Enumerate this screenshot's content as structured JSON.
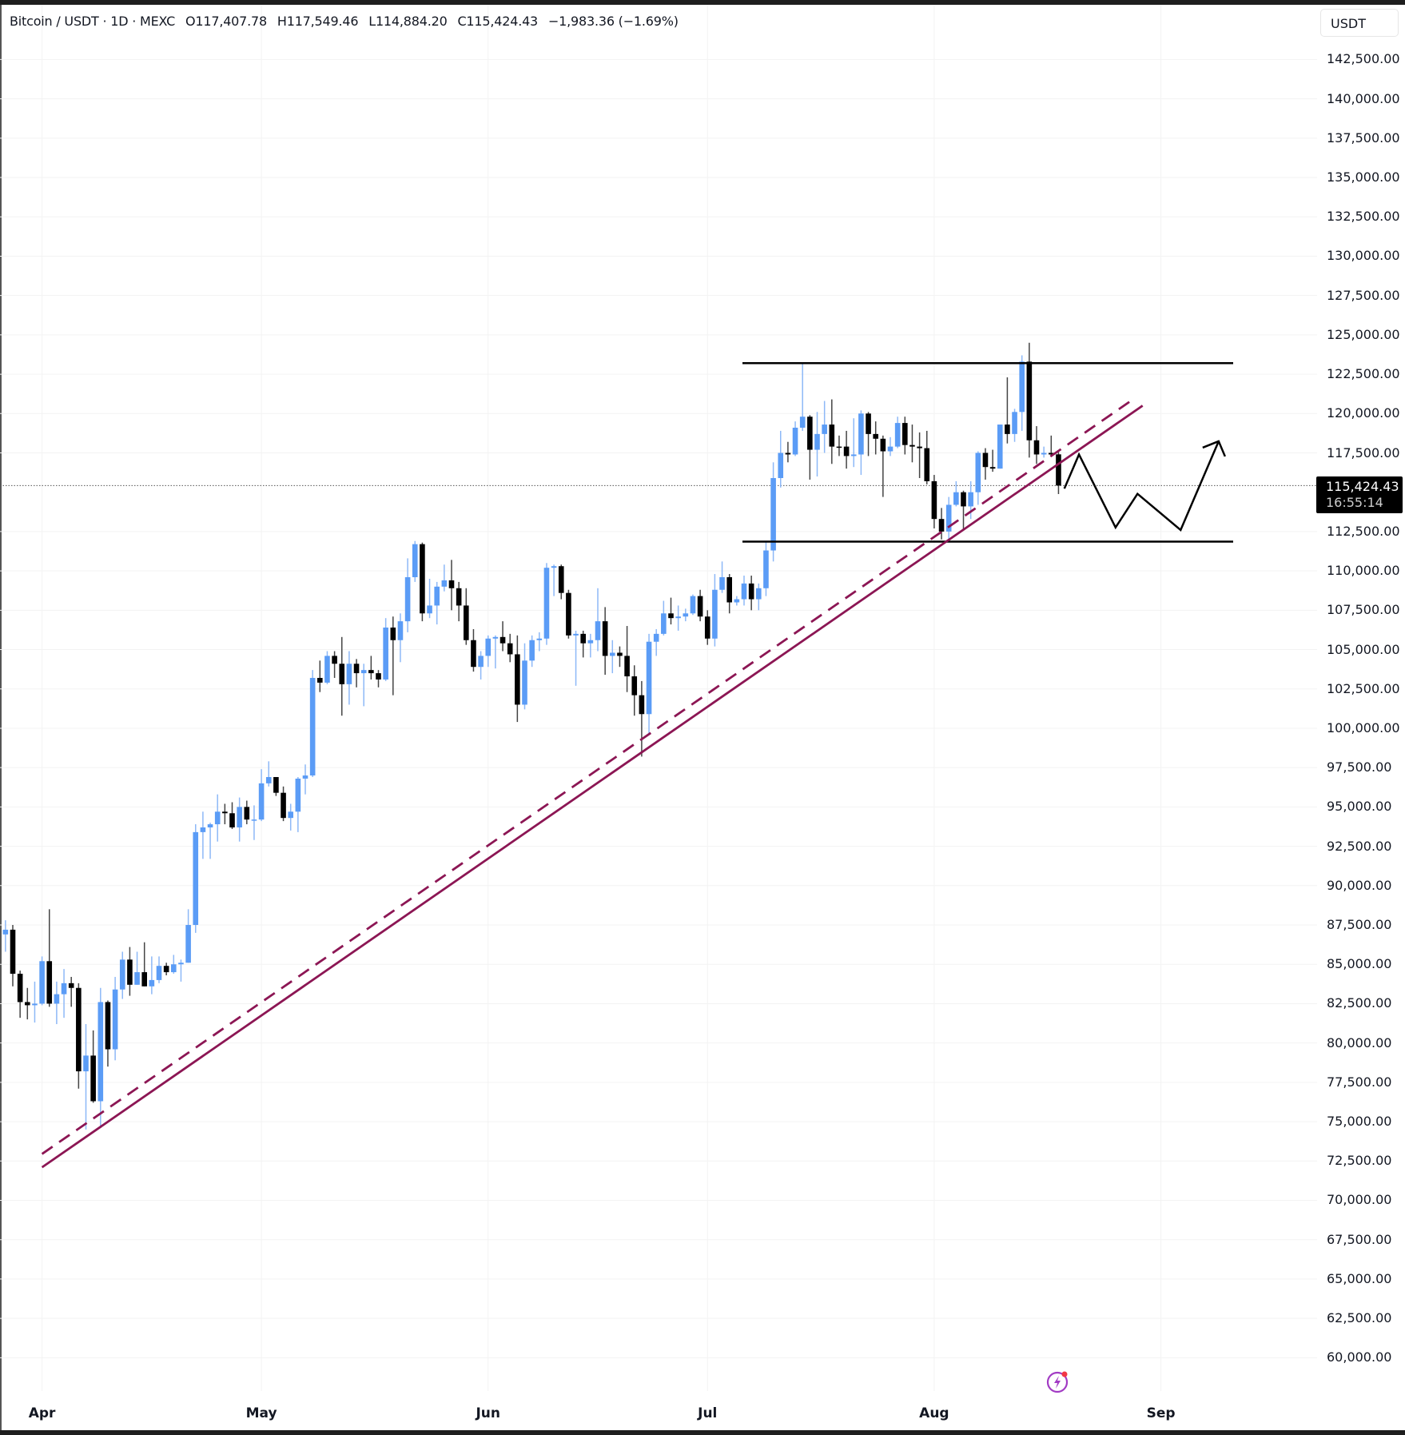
{
  "header": {
    "symbol": "Bitcoin / USDT · 1D · MEXC",
    "open": "O117,407.78",
    "high": "H117,549.46",
    "low": "L114,884.20",
    "close": "C115,424.43",
    "change": "−1,983.36 (−1.69%)"
  },
  "currency_button": "USDT",
  "last_price": {
    "value": "115,424.43",
    "countdown": "16:55:14"
  },
  "icons": {
    "alert": "lightning-alert-icon"
  },
  "colors": {
    "up": "#5b9cf6",
    "down": "#000000",
    "trendline": "#8c1654",
    "level": "#000000",
    "grid": "#f3f3f3"
  },
  "chart_data": {
    "type": "candlestick",
    "title": "Bitcoin / USDT · 1D · MEXC",
    "xlabel": "",
    "ylabel": "USDT",
    "ylim": [
      58500,
      144500
    ],
    "grid": true,
    "y_ticks": [
      "142,500.00",
      "140,000.00",
      "137,500.00",
      "135,000.00",
      "132,500.00",
      "130,000.00",
      "127,500.00",
      "125,000.00",
      "122,500.00",
      "120,000.00",
      "117,500.00",
      "112,500.00",
      "110,000.00",
      "107,500.00",
      "105,000.00",
      "102,500.00",
      "100,000.00",
      "97,500.00",
      "95,000.00",
      "92,500.00",
      "90,000.00",
      "87,500.00",
      "85,000.00",
      "82,500.00",
      "80,000.00",
      "77,500.00",
      "75,000.00",
      "72,500.00",
      "70,000.00",
      "67,500.00",
      "65,000.00",
      "62,500.00",
      "60,000.00"
    ],
    "x_ticks": [
      {
        "label": "Apr",
        "day": 0
      },
      {
        "label": "May",
        "day": 30
      },
      {
        "label": "Jun",
        "day": 61
      },
      {
        "label": "Jul",
        "day": 91
      },
      {
        "label": "Aug",
        "day": 122
      },
      {
        "label": "Sep",
        "day": 153
      }
    ],
    "first_candle_day": -5,
    "first_candle_date": "Mar 27",
    "ohlc_thousands": [
      [
        86.9,
        87.8,
        85.8,
        87.2
      ],
      [
        87.2,
        87.5,
        83.6,
        84.4
      ],
      [
        84.4,
        84.6,
        81.6,
        82.6
      ],
      [
        82.6,
        83.5,
        81.5,
        82.4
      ],
      [
        82.4,
        83.9,
        81.3,
        82.5
      ],
      [
        82.5,
        85.5,
        82.4,
        85.2
      ],
      [
        85.2,
        88.5,
        82.3,
        82.5
      ],
      [
        82.5,
        83.9,
        81.2,
        83.1
      ],
      [
        83.1,
        84.7,
        81.6,
        83.8
      ],
      [
        83.8,
        84.2,
        82.3,
        83.5
      ],
      [
        83.5,
        83.8,
        77.1,
        78.2
      ],
      [
        78.2,
        81.2,
        74.5,
        79.2
      ],
      [
        79.2,
        80.8,
        76.2,
        76.3
      ],
      [
        76.3,
        83.5,
        74.6,
        82.6
      ],
      [
        82.6,
        82.7,
        78.5,
        79.6
      ],
      [
        79.6,
        84.2,
        78.9,
        83.4
      ],
      [
        83.4,
        85.8,
        82.8,
        85.3
      ],
      [
        85.3,
        86.1,
        83.0,
        83.7
      ],
      [
        83.7,
        85.8,
        83.7,
        84.5
      ],
      [
        84.5,
        86.4,
        83.6,
        83.6
      ],
      [
        83.6,
        85.5,
        83.1,
        84.0
      ],
      [
        84.0,
        85.5,
        83.8,
        84.9
      ],
      [
        84.9,
        85.1,
        84.3,
        84.5
      ],
      [
        84.5,
        85.6,
        84.4,
        85.0
      ],
      [
        85.0,
        85.3,
        83.9,
        85.1
      ],
      [
        85.1,
        88.5,
        85.1,
        87.5
      ],
      [
        87.5,
        93.9,
        87.0,
        93.4
      ],
      [
        93.4,
        94.7,
        91.7,
        93.7
      ],
      [
        93.7,
        94.0,
        91.7,
        93.9
      ],
      [
        93.9,
        95.8,
        92.8,
        94.7
      ],
      [
        94.7,
        95.2,
        93.9,
        94.6
      ],
      [
        94.6,
        95.3,
        93.6,
        93.7
      ],
      [
        93.7,
        95.6,
        92.8,
        95.0
      ],
      [
        95.0,
        95.4,
        93.9,
        94.2
      ],
      [
        94.2,
        95.1,
        92.9,
        94.2
      ],
      [
        94.2,
        97.4,
        94.1,
        96.5
      ],
      [
        96.5,
        97.9,
        96.3,
        96.9
      ],
      [
        96.9,
        96.9,
        95.7,
        95.9
      ],
      [
        95.9,
        96.3,
        94.1,
        94.3
      ],
      [
        94.3,
        95.2,
        93.5,
        94.7
      ],
      [
        94.7,
        96.9,
        93.4,
        96.8
      ],
      [
        96.8,
        97.7,
        95.8,
        97.0
      ],
      [
        97.0,
        103.7,
        96.9,
        103.2
      ],
      [
        103.2,
        104.3,
        102.3,
        102.9
      ],
      [
        102.9,
        104.9,
        102.8,
        104.6
      ],
      [
        104.6,
        104.9,
        103.2,
        104.1
      ],
      [
        104.1,
        105.8,
        100.8,
        102.8
      ],
      [
        102.8,
        104.9,
        101.5,
        104.1
      ],
      [
        104.1,
        104.4,
        102.6,
        103.5
      ],
      [
        103.5,
        104.1,
        101.4,
        103.7
      ],
      [
        103.7,
        104.6,
        103.1,
        103.5
      ],
      [
        103.5,
        103.7,
        102.6,
        103.1
      ],
      [
        103.1,
        107.0,
        103.0,
        106.4
      ],
      [
        106.4,
        107.1,
        102.1,
        105.6
      ],
      [
        105.6,
        107.3,
        104.2,
        106.8
      ],
      [
        106.8,
        110.8,
        106.1,
        109.6
      ],
      [
        109.6,
        111.9,
        109.3,
        111.7
      ],
      [
        111.7,
        111.8,
        106.8,
        107.3
      ],
      [
        107.3,
        109.5,
        107.0,
        107.8
      ],
      [
        107.8,
        109.3,
        106.6,
        109.0
      ],
      [
        109.0,
        110.4,
        108.7,
        109.4
      ],
      [
        109.4,
        110.7,
        107.5,
        108.9
      ],
      [
        108.9,
        109.3,
        106.8,
        107.8
      ],
      [
        107.8,
        108.9,
        105.3,
        105.6
      ],
      [
        105.6,
        106.3,
        103.6,
        103.9
      ],
      [
        103.9,
        104.9,
        103.1,
        104.6
      ],
      [
        104.6,
        105.9,
        103.9,
        105.7
      ],
      [
        105.7,
        105.9,
        103.8,
        105.8
      ],
      [
        105.8,
        106.8,
        104.9,
        105.4
      ],
      [
        105.4,
        106.0,
        104.2,
        104.7
      ],
      [
        104.7,
        105.9,
        100.4,
        101.5
      ],
      [
        101.5,
        105.4,
        101.2,
        104.3
      ],
      [
        104.3,
        105.9,
        103.9,
        105.6
      ],
      [
        105.6,
        106.1,
        104.9,
        105.7
      ],
      [
        105.7,
        110.5,
        105.3,
        110.2
      ],
      [
        110.2,
        110.4,
        108.4,
        110.3
      ],
      [
        110.3,
        110.4,
        108.2,
        108.6
      ],
      [
        108.6,
        108.8,
        105.7,
        105.9
      ],
      [
        105.9,
        106.2,
        102.7,
        106.0
      ],
      [
        106.0,
        106.2,
        104.5,
        105.4
      ],
      [
        105.4,
        106.0,
        104.5,
        105.6
      ],
      [
        105.6,
        108.9,
        104.9,
        106.8
      ],
      [
        106.8,
        107.7,
        103.4,
        104.6
      ],
      [
        104.6,
        105.6,
        103.5,
        104.8
      ],
      [
        104.8,
        105.2,
        103.9,
        104.6
      ],
      [
        104.6,
        106.5,
        102.3,
        103.3
      ],
      [
        103.3,
        104.0,
        100.8,
        102.1
      ],
      [
        102.1,
        103.0,
        98.2,
        100.9
      ],
      [
        100.9,
        106.0,
        99.6,
        105.5
      ],
      [
        105.5,
        106.3,
        104.6,
        106.0
      ],
      [
        106.0,
        108.1,
        105.9,
        107.3
      ],
      [
        107.3,
        108.3,
        106.6,
        107.0
      ],
      [
        107.0,
        107.8,
        106.2,
        107.1
      ],
      [
        107.1,
        107.6,
        106.8,
        107.3
      ],
      [
        107.3,
        108.5,
        107.2,
        108.4
      ],
      [
        108.4,
        108.8,
        106.8,
        107.1
      ],
      [
        107.1,
        107.5,
        105.3,
        105.7
      ],
      [
        105.7,
        109.8,
        105.2,
        108.8
      ],
      [
        108.8,
        110.6,
        108.6,
        109.6
      ],
      [
        109.6,
        109.8,
        107.3,
        108.0
      ],
      [
        108.0,
        108.4,
        107.8,
        108.2
      ],
      [
        108.2,
        109.7,
        107.8,
        109.2
      ],
      [
        109.2,
        109.7,
        107.5,
        108.2
      ],
      [
        108.2,
        109.2,
        107.5,
        108.9
      ],
      [
        108.9,
        111.9,
        108.4,
        111.3
      ],
      [
        111.3,
        116.9,
        110.6,
        115.9
      ],
      [
        115.9,
        118.9,
        115.3,
        117.5
      ],
      [
        117.5,
        118.2,
        116.9,
        117.4
      ],
      [
        117.4,
        119.5,
        117.3,
        119.1
      ],
      [
        119.1,
        123.2,
        118.9,
        119.8
      ],
      [
        119.8,
        119.9,
        115.8,
        117.7
      ],
      [
        117.7,
        120.1,
        116.0,
        118.7
      ],
      [
        118.7,
        120.8,
        117.5,
        119.3
      ],
      [
        119.3,
        120.9,
        116.8,
        117.9
      ],
      [
        117.9,
        118.6,
        117.3,
        117.85
      ],
      [
        117.9,
        118.9,
        116.5,
        117.3
      ],
      [
        117.3,
        119.7,
        116.6,
        117.4
      ],
      [
        117.4,
        120.2,
        116.1,
        120.0
      ],
      [
        120.0,
        120.1,
        117.3,
        118.7
      ],
      [
        118.7,
        119.5,
        117.4,
        118.4
      ],
      [
        118.4,
        118.6,
        114.7,
        117.6
      ],
      [
        117.6,
        118.5,
        117.3,
        117.9
      ],
      [
        117.9,
        119.8,
        117.8,
        119.4
      ],
      [
        119.4,
        119.8,
        117.4,
        118.0
      ],
      [
        118.0,
        119.3,
        116.9,
        117.9
      ],
      [
        117.9,
        118.8,
        115.9,
        117.8
      ],
      [
        117.8,
        118.9,
        115.5,
        115.7
      ],
      [
        115.7,
        116.1,
        112.7,
        113.3
      ],
      [
        113.3,
        114.0,
        112.0,
        112.5
      ],
      [
        112.5,
        114.7,
        112.0,
        114.2
      ],
      [
        114.2,
        115.7,
        114.1,
        115.0
      ],
      [
        115.0,
        115.1,
        112.6,
        114.1
      ],
      [
        114.1,
        115.7,
        113.3,
        115.0
      ],
      [
        115.0,
        117.6,
        114.2,
        117.5
      ],
      [
        117.5,
        117.8,
        115.8,
        116.6
      ],
      [
        116.6,
        117.7,
        116.3,
        116.5
      ],
      [
        116.5,
        119.3,
        116.5,
        119.3
      ],
      [
        119.3,
        122.3,
        118.1,
        118.7
      ],
      [
        118.7,
        120.3,
        118.2,
        120.1
      ],
      [
        120.1,
        123.7,
        118.9,
        123.3
      ],
      [
        123.3,
        124.5,
        117.2,
        118.3
      ],
      [
        118.3,
        119.2,
        116.8,
        117.4
      ],
      [
        117.4,
        117.9,
        117.2,
        117.5
      ],
      [
        117.5,
        118.6,
        117.3,
        117.4
      ],
      [
        117.408,
        117.549,
        114.884,
        115.424
      ]
    ],
    "annotations": {
      "resistance_level": 123200,
      "support_level": 111860,
      "trendline_solid": [
        {
          "day": 0,
          "price": 72100
        },
        {
          "day": 150.5,
          "price": 120500
        }
      ],
      "trendline_dashed": [
        {
          "day": 0,
          "price": 72950
        },
        {
          "day": 149.5,
          "price": 121000
        }
      ],
      "projection_path": [
        {
          "day": 139.8,
          "price": 115230
        },
        {
          "day": 141.8,
          "price": 117400
        },
        {
          "day": 146.8,
          "price": 112760
        },
        {
          "day": 149.8,
          "price": 114900
        },
        {
          "day": 155.7,
          "price": 112600
        },
        {
          "day": 160.9,
          "price": 118240
        }
      ]
    }
  }
}
